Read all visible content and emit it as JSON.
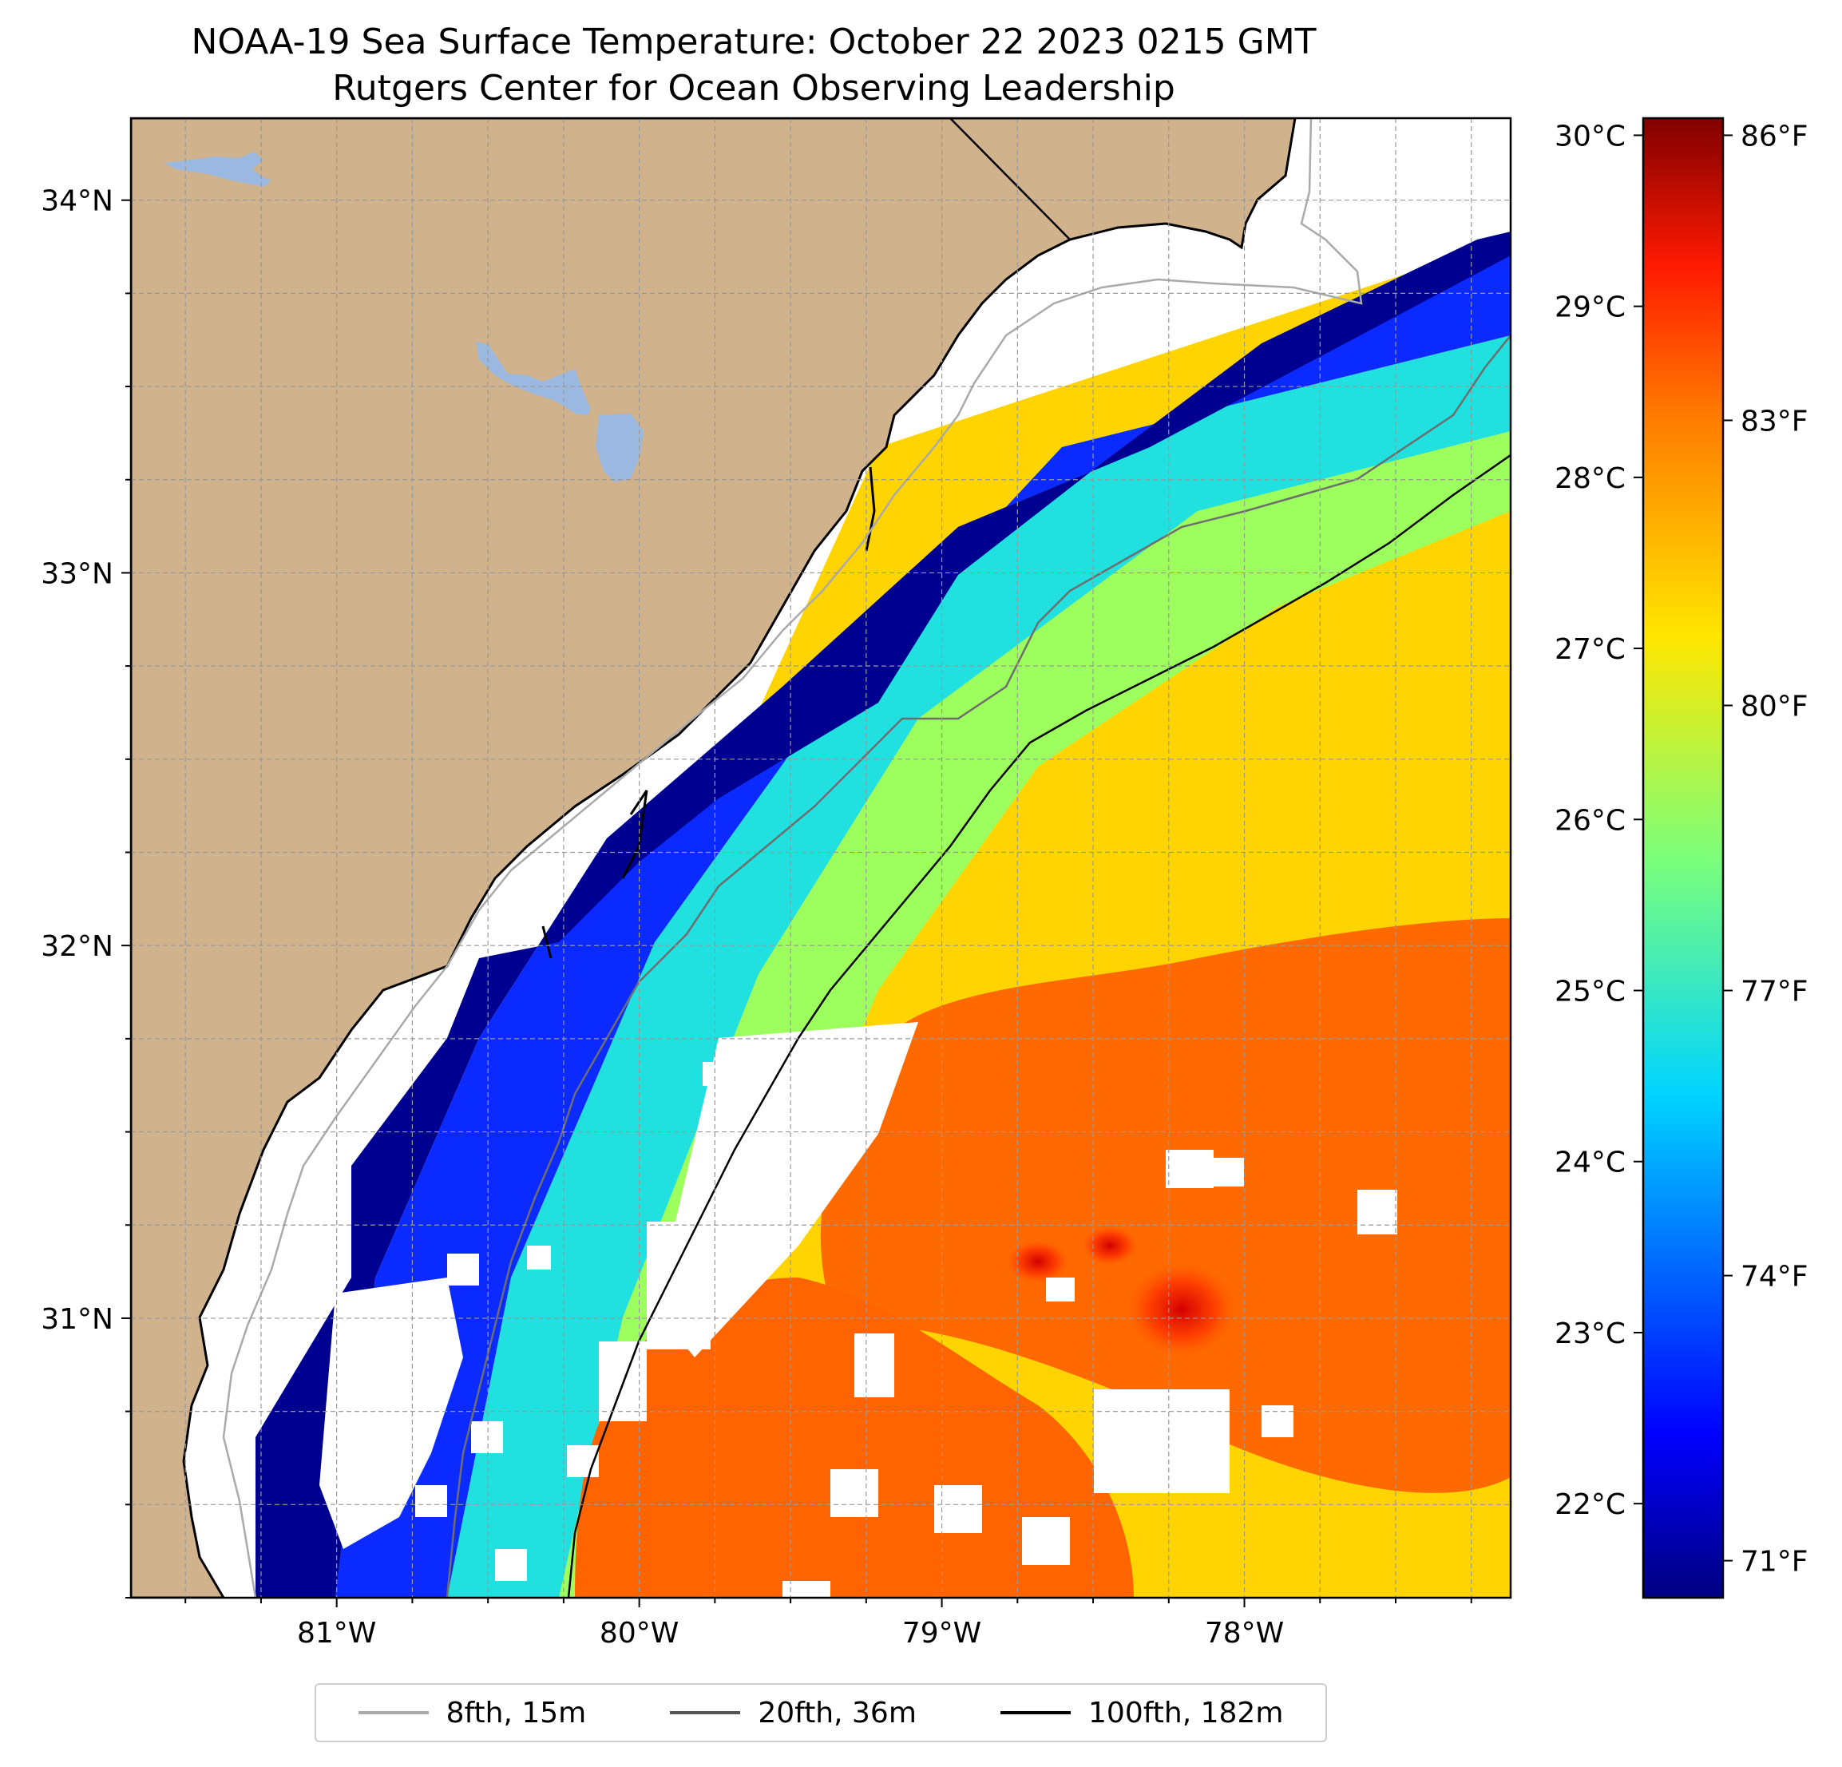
{
  "header": {
    "title_line1": "NOAA-19 Sea Surface Temperature: October 22 2023 0215 GMT",
    "title_line2": "Rutgers Center for Ocean Observing Leadership"
  },
  "map": {
    "lon_range": [
      -81.68,
      -77.12
    ],
    "lat_range": [
      30.25,
      34.22
    ],
    "lon_ticks": [
      {
        "value": -81,
        "label": "81°W"
      },
      {
        "value": -80,
        "label": "80°W"
      },
      {
        "value": -79,
        "label": "79°W"
      },
      {
        "value": -78,
        "label": "78°W"
      }
    ],
    "lat_ticks": [
      {
        "value": 31,
        "label": "31°N"
      },
      {
        "value": 32,
        "label": "32°N"
      },
      {
        "value": 33,
        "label": "33°N"
      },
      {
        "value": 34,
        "label": "34°N"
      }
    ],
    "land_color": "#d0b38d",
    "lake_color": "#9ab8e0",
    "grid": true
  },
  "colorbar": {
    "colormap": "jet",
    "celsius_range": [
      21.5,
      30.0
    ],
    "celsius_ticks": [
      {
        "value": 22,
        "label": "22°C"
      },
      {
        "value": 23,
        "label": "23°C"
      },
      {
        "value": 24,
        "label": "24°C"
      },
      {
        "value": 25,
        "label": "25°C"
      },
      {
        "value": 26,
        "label": "26°C"
      },
      {
        "value": 27,
        "label": "27°C"
      },
      {
        "value": 28,
        "label": "28°C"
      },
      {
        "value": 29,
        "label": "29°C"
      },
      {
        "value": 30,
        "label": "30°C"
      }
    ],
    "fahrenheit_ticks": [
      {
        "value": 71,
        "label": "71°F"
      },
      {
        "value": 74,
        "label": "74°F"
      },
      {
        "value": 77,
        "label": "77°F"
      },
      {
        "value": 80,
        "label": "80°F"
      },
      {
        "value": 83,
        "label": "83°F"
      },
      {
        "value": 86,
        "label": "86°F"
      }
    ]
  },
  "legend": {
    "placement": "bottom-center",
    "items": [
      {
        "label": "8fth, 15m",
        "color": "#aaaaaa"
      },
      {
        "label": "20fth, 36m",
        "color": "#555555"
      },
      {
        "label": "100fth, 182m",
        "color": "#000000"
      }
    ]
  }
}
